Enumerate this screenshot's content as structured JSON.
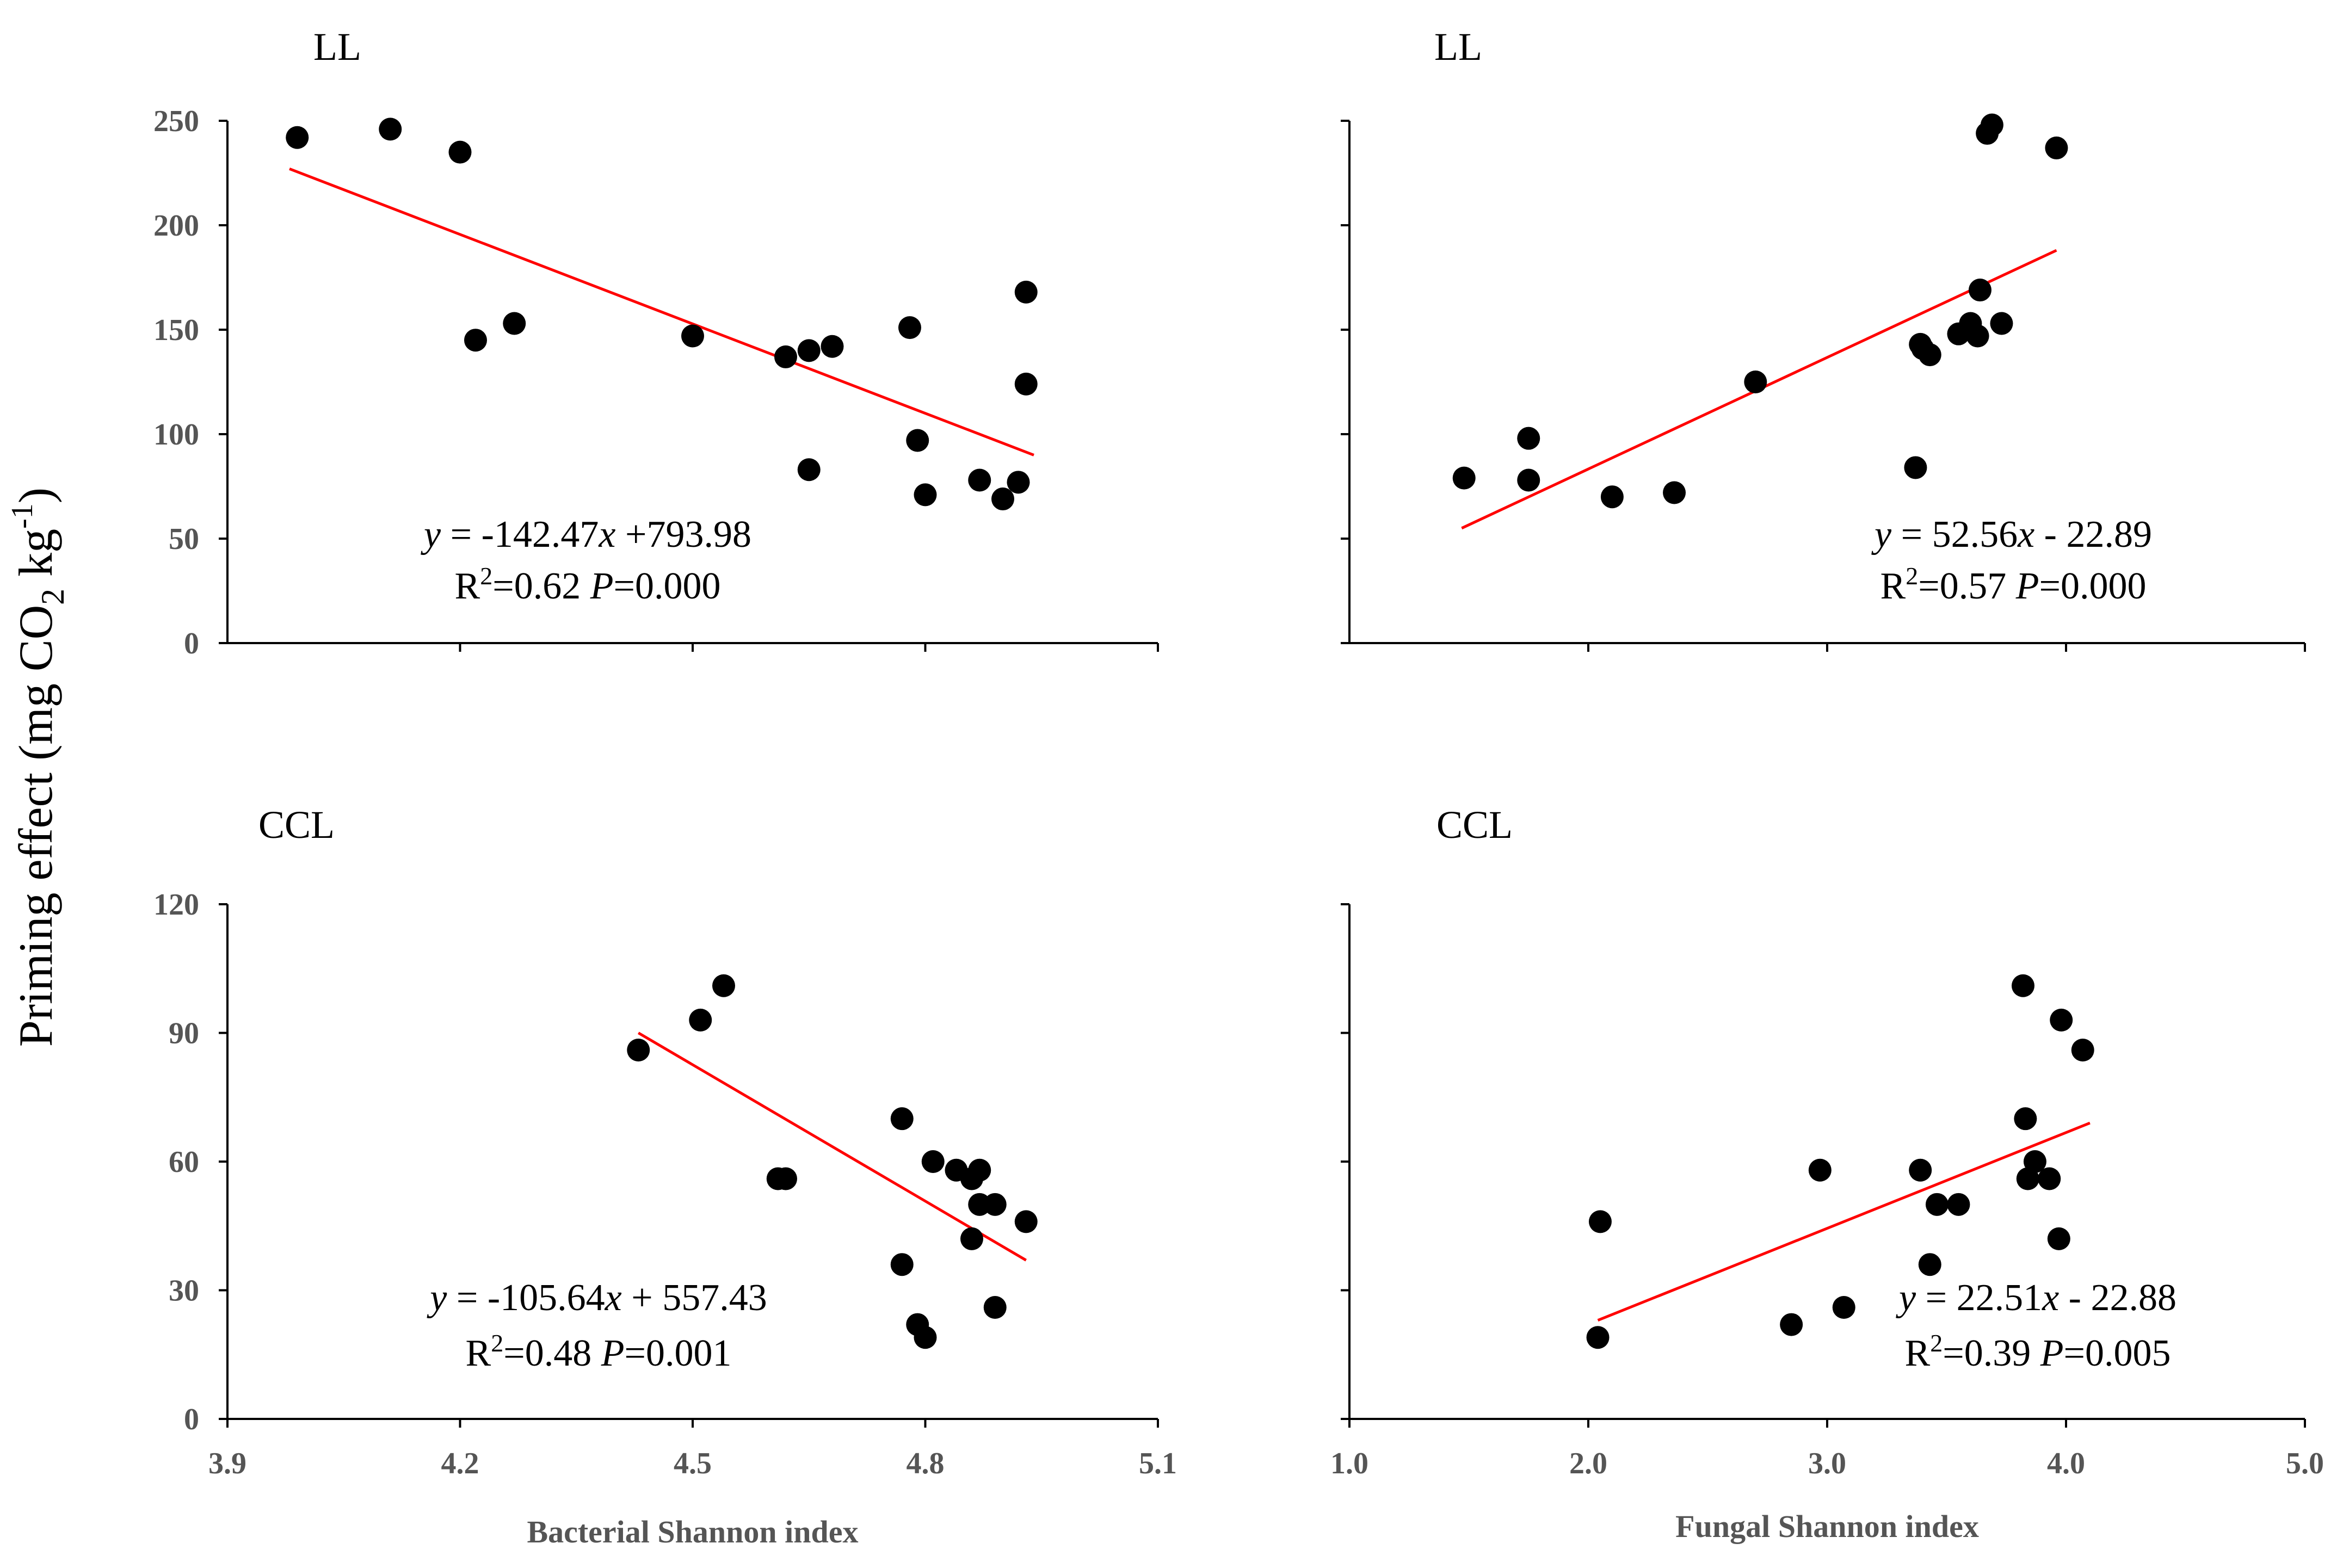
{
  "figure": {
    "ylabel_main": "Priming effect (mg CO",
    "ylabel_sub": "2",
    "ylabel_mid": " kg",
    "ylabel_sup": "-1",
    "ylabel_end": ")"
  },
  "chart_data": [
    {
      "id": "ll-bacterial",
      "type": "scatter",
      "title": "LL",
      "xlabel": "",
      "ylabel": "Priming effect (mg CO2 kg-1)",
      "xlim": [
        3.9,
        5.1
      ],
      "ylim": [
        0,
        250
      ],
      "xticks": [],
      "xtick_labels": [],
      "yticks": [
        0,
        50,
        100,
        150,
        200,
        250
      ],
      "ytick_labels": [
        "0",
        "50",
        "100",
        "150",
        "200",
        "250"
      ],
      "points": [
        [
          3.99,
          242
        ],
        [
          4.11,
          246
        ],
        [
          4.2,
          235
        ],
        [
          4.22,
          145
        ],
        [
          4.27,
          153
        ],
        [
          4.5,
          147
        ],
        [
          4.62,
          137
        ],
        [
          4.65,
          83
        ],
        [
          4.65,
          140
        ],
        [
          4.68,
          142
        ],
        [
          4.78,
          151
        ],
        [
          4.79,
          97
        ],
        [
          4.8,
          71
        ],
        [
          4.87,
          78
        ],
        [
          4.9,
          69
        ],
        [
          4.92,
          77
        ],
        [
          4.93,
          168
        ],
        [
          4.93,
          124
        ]
      ],
      "trendline": {
        "x": [
          3.98,
          4.94
        ],
        "y": [
          227,
          90
        ]
      },
      "eq_y_prefix": "y",
      "eq_rest": " = -142.47",
      "eq_x": "x",
      "eq_tail": "  +793.98",
      "r2_r": "R",
      "r2_sup": "2",
      "r2_val": "=0.62 ",
      "p_label": "P",
      "p_val": "=0.000"
    },
    {
      "id": "ll-fungal",
      "type": "scatter",
      "title": "LL",
      "xlabel": "",
      "ylabel": "",
      "xlim": [
        1.0,
        5.0
      ],
      "ylim": [
        0,
        250
      ],
      "xticks": [],
      "xtick_labels": [],
      "yticks": [
        0,
        50,
        100,
        150,
        200,
        250
      ],
      "ytick_labels": [],
      "points": [
        [
          1.48,
          79
        ],
        [
          1.75,
          98
        ],
        [
          1.75,
          78
        ],
        [
          2.1,
          70
        ],
        [
          2.36,
          72
        ],
        [
          2.7,
          125
        ],
        [
          3.37,
          84
        ],
        [
          3.39,
          143
        ],
        [
          3.4,
          141
        ],
        [
          3.43,
          138
        ],
        [
          3.55,
          148
        ],
        [
          3.6,
          153
        ],
        [
          3.63,
          147
        ],
        [
          3.64,
          169
        ],
        [
          3.67,
          244
        ],
        [
          3.69,
          248
        ],
        [
          3.73,
          153
        ],
        [
          3.96,
          237
        ]
      ],
      "trendline": {
        "x": [
          1.47,
          3.96
        ],
        "y": [
          55,
          188
        ]
      },
      "eq_y_prefix": "y",
      "eq_rest": " = 52.56",
      "eq_x": "x",
      "eq_tail": " - 22.89",
      "r2_r": "R",
      "r2_sup": "2",
      "r2_val": "=0.57 ",
      "p_label": "P",
      "p_val": "=0.000"
    },
    {
      "id": "ccl-bacterial",
      "type": "scatter",
      "title": "CCL",
      "xlabel": "Bacterial Shannon index",
      "ylabel": "",
      "xlim": [
        3.9,
        5.1
      ],
      "ylim": [
        0,
        120
      ],
      "xticks": [
        3.9,
        4.2,
        4.5,
        4.8,
        5.1
      ],
      "xtick_labels": [
        "3.9",
        "4.2",
        "4.5",
        "4.8",
        "5.1"
      ],
      "yticks": [
        0,
        30,
        60,
        90,
        120
      ],
      "ytick_labels": [
        "0",
        "30",
        "60",
        "90",
        "120"
      ],
      "points": [
        [
          4.43,
          86
        ],
        [
          4.51,
          93
        ],
        [
          4.54,
          101
        ],
        [
          4.61,
          56
        ],
        [
          4.62,
          56
        ],
        [
          4.77,
          70
        ],
        [
          4.77,
          36
        ],
        [
          4.79,
          22
        ],
        [
          4.8,
          19
        ],
        [
          4.81,
          60
        ],
        [
          4.84,
          58
        ],
        [
          4.86,
          56
        ],
        [
          4.86,
          42
        ],
        [
          4.87,
          58
        ],
        [
          4.87,
          50
        ],
        [
          4.89,
          50
        ],
        [
          4.89,
          26
        ],
        [
          4.93,
          46
        ]
      ],
      "trendline": {
        "x": [
          4.43,
          4.93
        ],
        "y": [
          90,
          37
        ]
      },
      "eq_y_prefix": "y",
      "eq_rest": " =  -105.64",
      "eq_x": "x",
      "eq_tail": " + 557.43",
      "r2_r": "R",
      "r2_sup": "2",
      "r2_val": "=0.48 ",
      "p_label": "P",
      "p_val": "=0.001"
    },
    {
      "id": "ccl-fungal",
      "type": "scatter",
      "title": "CCL",
      "xlabel": "Fungal Shannon index",
      "ylabel": "",
      "xlim": [
        1.0,
        5.0
      ],
      "ylim": [
        0,
        120
      ],
      "xticks": [
        1.0,
        2.0,
        3.0,
        4.0,
        5.0
      ],
      "xtick_labels": [
        "1.0",
        "2.0",
        "3.0",
        "4.0",
        "5.0"
      ],
      "yticks": [
        0,
        30,
        60,
        90,
        120
      ],
      "ytick_labels": [],
      "points": [
        [
          2.04,
          19
        ],
        [
          2.05,
          46
        ],
        [
          2.85,
          22
        ],
        [
          2.97,
          58
        ],
        [
          3.07,
          26
        ],
        [
          3.39,
          58
        ],
        [
          3.43,
          36
        ],
        [
          3.46,
          50
        ],
        [
          3.55,
          50
        ],
        [
          3.82,
          101
        ],
        [
          3.83,
          70
        ],
        [
          3.84,
          56
        ],
        [
          3.87,
          60
        ],
        [
          3.93,
          56
        ],
        [
          3.97,
          42
        ],
        [
          3.98,
          93
        ],
        [
          4.07,
          86
        ]
      ],
      "trendline": {
        "x": [
          2.04,
          4.1
        ],
        "y": [
          23,
          69
        ]
      },
      "eq_y_prefix": "y",
      "eq_rest": " = 22.51",
      "eq_x": "x",
      "eq_tail": " - 22.88",
      "r2_r": "R",
      "r2_sup": "2",
      "r2_val": "=0.39 ",
      "p_label": "P",
      "p_val": "=0.005"
    }
  ]
}
